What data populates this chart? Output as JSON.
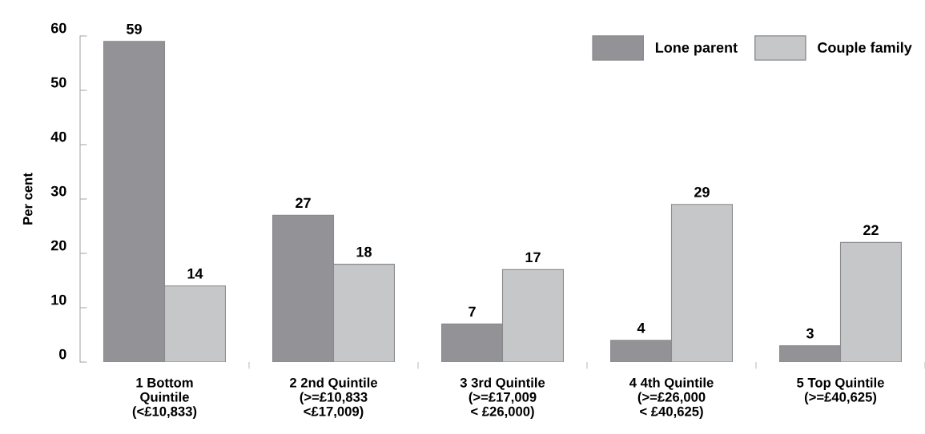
{
  "chart_data": {
    "type": "bar",
    "ylabel": "Per cent",
    "categories": [
      "1 Bottom\nQuintile\n(<£10,833)",
      "2 2nd Quintile\n(>=£10,833\n<£17,009)",
      "3 3rd Quintile\n(>=£17,009\n< £26,000)",
      "4 4th Quintile\n(>=£26,000\n< £40,625)",
      "5 Top Quintile\n(>=£40,625)"
    ],
    "series": [
      {
        "name": "Lone parent",
        "color": "#939397",
        "values": [
          59,
          27,
          7,
          4,
          3
        ]
      },
      {
        "name": "Couple family",
        "color": "#c6c7c9",
        "values": [
          14,
          18,
          17,
          29,
          22
        ]
      }
    ],
    "ylim": [
      0,
      60
    ],
    "yticks": [
      0,
      10,
      20,
      30,
      40,
      50,
      60
    ],
    "data_labels": true,
    "legend": "top right",
    "grid": false
  }
}
